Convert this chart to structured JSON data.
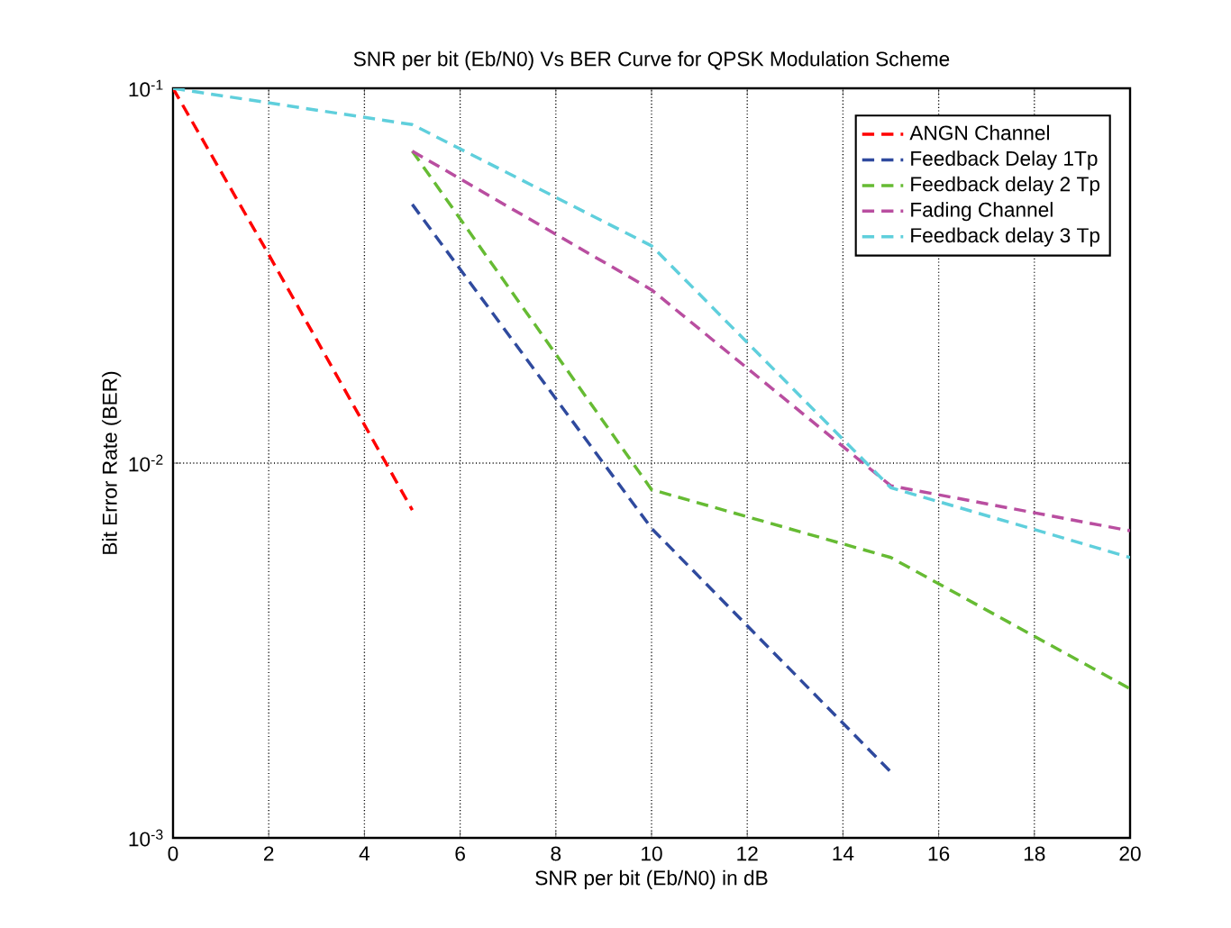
{
  "chart_data": {
    "type": "line",
    "title": "SNR per bit (Eb/N0) Vs BER Curve for QPSK Modulation Scheme",
    "xlabel": "SNR per bit (Eb/N0) in dB",
    "ylabel": "Bit Error Rate (BER)",
    "series": [
      {
        "name": "ANGN Channel",
        "color": "#ff0000",
        "x": [
          0,
          2,
          5
        ],
        "values": [
          0.1,
          0.036,
          0.0075
        ]
      },
      {
        "name": "Feedback Delay 1Tp",
        "color": "#2f4a9e",
        "x": [
          5,
          10,
          15
        ],
        "values": [
          0.049,
          0.0067,
          0.0015
        ]
      },
      {
        "name": "Feedback delay 2 Tp",
        "color": "#66bb33",
        "x": [
          5,
          10,
          15,
          20
        ],
        "values": [
          0.068,
          0.0085,
          0.0056,
          0.0025
        ]
      },
      {
        "name": "Fading Channel",
        "color": "#b94ea0",
        "x": [
          5,
          10,
          15,
          20
        ],
        "values": [
          0.068,
          0.029,
          0.0087,
          0.0066
        ]
      },
      {
        "name": "Feedback delay 3 Tp",
        "color": "#5fcfdc",
        "x": [
          0,
          5,
          10,
          15,
          20
        ],
        "values": [
          0.1,
          0.08,
          0.038,
          0.0086,
          0.0056
        ]
      }
    ],
    "xlim": [
      0,
      20
    ],
    "ylim": [
      0.001,
      0.1
    ],
    "xticks": [
      0,
      2,
      4,
      6,
      8,
      10,
      12,
      14,
      16,
      18,
      20
    ],
    "yticks": [
      {
        "value": 0.001,
        "label": "10$^{-3}$"
      },
      {
        "value": 0.01,
        "label": "10$^{-2}$"
      },
      {
        "value": 0.1,
        "label": "10$^{-1}$"
      }
    ],
    "log": "y",
    "grid": true,
    "legend": "top right",
    "line_style": "dashed",
    "marker": "none"
  }
}
